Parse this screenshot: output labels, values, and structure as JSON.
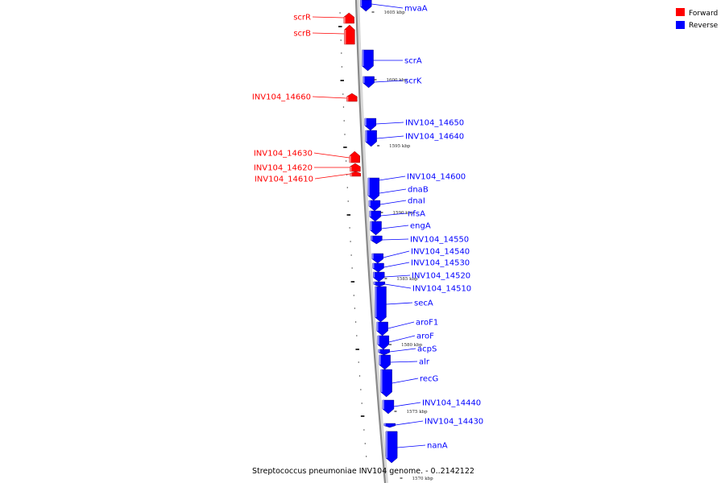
{
  "legend": {
    "forward_label": "Forward",
    "reverse_label": "Reverse",
    "forward_color": "#ff0000",
    "reverse_color": "#0000ff"
  },
  "caption": "Streptococcus pneumoniae INV104 genome. - 0..2142122",
  "kbp_marks": [
    "1605 kbp",
    "1600 kbp",
    "1595 kbp",
    "1590 kbp",
    "1585 kbp",
    "1580 kbp",
    "1575 kbp",
    "1570 kbp"
  ],
  "forward_genes": [
    "scrR",
    "scrB",
    "INV104_14660",
    "INV104_14630",
    "INV104_14620",
    "INV104_14610"
  ],
  "reverse_genes": [
    "mvaA",
    "scrA",
    "scrK",
    "INV104_14650",
    "INV104_14640",
    "INV104_14600",
    "dnaB",
    "dnaI",
    "nfsA",
    "engA",
    "INV104_14550",
    "INV104_14540",
    "INV104_14530",
    "INV104_14520",
    "INV104_14510",
    "secA",
    "aroF1",
    "aroF",
    "acpS",
    "alr",
    "recG",
    "INV104_14440",
    "INV104_14430",
    "nanA"
  ]
}
